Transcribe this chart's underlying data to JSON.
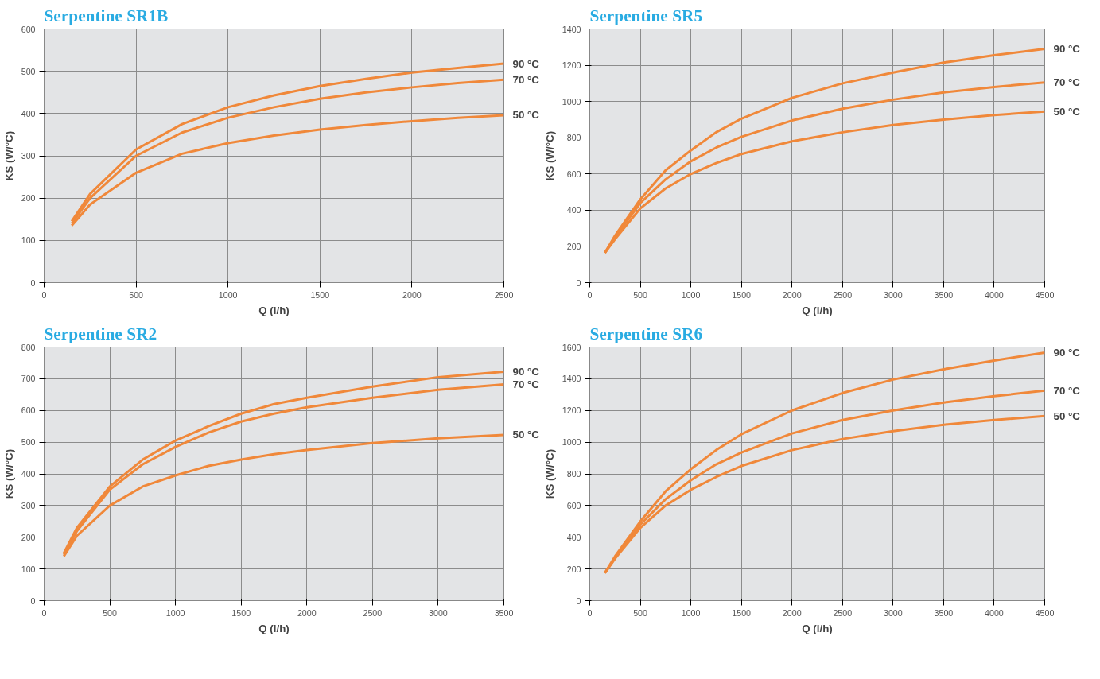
{
  "chart_data": [
    {
      "type": "line",
      "title": "Serpentine SR1B",
      "xlabel": "Q (l/h)",
      "ylabel": "KS (W/°C)",
      "xlim": [
        0,
        2500
      ],
      "ylim": [
        0,
        600
      ],
      "xticks": [
        0,
        500,
        1000,
        1500,
        2000,
        2500
      ],
      "yticks": [
        0,
        100,
        200,
        300,
        400,
        500,
        600
      ],
      "grid": true,
      "line_style": "solid",
      "x": [
        150,
        250,
        500,
        750,
        1000,
        1250,
        1500,
        1750,
        2000,
        2250,
        2500
      ],
      "series": [
        {
          "name": "90 °C",
          "color": "#f0883a",
          "values": [
            145,
            210,
            315,
            375,
            415,
            443,
            465,
            482,
            497,
            508,
            518
          ]
        },
        {
          "name": "70 °C",
          "color": "#f0883a",
          "values": [
            140,
            200,
            300,
            355,
            390,
            415,
            435,
            450,
            462,
            472,
            480
          ]
        },
        {
          "name": "50 °C",
          "color": "#f0883a",
          "values": [
            135,
            185,
            260,
            305,
            330,
            348,
            362,
            373,
            382,
            390,
            396
          ]
        }
      ]
    },
    {
      "type": "line",
      "title": "Serpentine SR5",
      "xlabel": "Q (l/h)",
      "ylabel": "KS (W/°C)",
      "xlim": [
        0,
        4500
      ],
      "ylim": [
        0,
        1400
      ],
      "xticks": [
        0,
        500,
        1000,
        1500,
        2000,
        2500,
        3000,
        3500,
        4000,
        4500
      ],
      "yticks": [
        0,
        200,
        400,
        600,
        800,
        1000,
        1200,
        1400
      ],
      "grid": true,
      "line_style": "solid",
      "x": [
        150,
        250,
        500,
        750,
        1000,
        1250,
        1500,
        2000,
        2500,
        3000,
        3500,
        4000,
        4500
      ],
      "series": [
        {
          "name": "90 °C",
          "color": "#f0883a",
          "values": [
            165,
            260,
            460,
            620,
            730,
            830,
            905,
            1020,
            1100,
            1160,
            1215,
            1255,
            1290
          ]
        },
        {
          "name": "70 °C",
          "color": "#f0883a",
          "values": [
            165,
            250,
            440,
            570,
            670,
            745,
            805,
            895,
            960,
            1010,
            1050,
            1080,
            1105
          ]
        },
        {
          "name": "50 °C",
          "color": "#f0883a",
          "values": [
            165,
            240,
            410,
            520,
            600,
            660,
            710,
            780,
            830,
            870,
            900,
            925,
            945
          ]
        }
      ]
    },
    {
      "type": "line",
      "title": "Serpentine SR2",
      "xlabel": "Q (l/h)",
      "ylabel": "KS (W/°C)",
      "xlim": [
        0,
        3500
      ],
      "ylim": [
        0,
        800
      ],
      "xticks": [
        0,
        500,
        1000,
        1500,
        2000,
        2500,
        3000,
        3500
      ],
      "yticks": [
        0,
        100,
        200,
        300,
        400,
        500,
        600,
        700,
        800
      ],
      "grid": true,
      "line_style": "solid",
      "x": [
        150,
        250,
        500,
        750,
        1000,
        1250,
        1500,
        1750,
        2000,
        2500,
        3000,
        3500
      ],
      "series": [
        {
          "name": "90 °C",
          "color": "#f0883a",
          "values": [
            150,
            230,
            360,
            445,
            505,
            550,
            590,
            620,
            640,
            675,
            705,
            722
          ]
        },
        {
          "name": "70 °C",
          "color": "#f0883a",
          "values": [
            145,
            220,
            350,
            430,
            485,
            530,
            565,
            590,
            610,
            640,
            665,
            682
          ]
        },
        {
          "name": "50 °C",
          "color": "#f0883a",
          "values": [
            140,
            205,
            300,
            360,
            395,
            425,
            445,
            462,
            475,
            497,
            512,
            523
          ]
        }
      ]
    },
    {
      "type": "line",
      "title": "Serpentine SR6",
      "xlabel": "Q (l/h)",
      "ylabel": "KS (W/°C)",
      "xlim": [
        0,
        4500
      ],
      "ylim": [
        0,
        1600
      ],
      "xticks": [
        0,
        500,
        1000,
        1500,
        2000,
        2500,
        3000,
        3500,
        4000,
        4500
      ],
      "yticks": [
        0,
        200,
        400,
        600,
        800,
        1000,
        1200,
        1400,
        1600
      ],
      "grid": true,
      "line_style": "solid",
      "x": [
        150,
        250,
        500,
        750,
        1000,
        1250,
        1500,
        2000,
        2500,
        3000,
        3500,
        4000,
        4500
      ],
      "series": [
        {
          "name": "90 °C",
          "color": "#f0883a",
          "values": [
            175,
            280,
            500,
            690,
            830,
            950,
            1050,
            1200,
            1310,
            1395,
            1460,
            1515,
            1565
          ]
        },
        {
          "name": "70 °C",
          "color": "#f0883a",
          "values": [
            175,
            270,
            480,
            640,
            760,
            860,
            935,
            1055,
            1140,
            1200,
            1250,
            1290,
            1325
          ]
        },
        {
          "name": "50 °C",
          "color": "#f0883a",
          "values": [
            175,
            265,
            460,
            600,
            700,
            780,
            850,
            950,
            1020,
            1070,
            1110,
            1140,
            1165
          ]
        }
      ]
    }
  ]
}
